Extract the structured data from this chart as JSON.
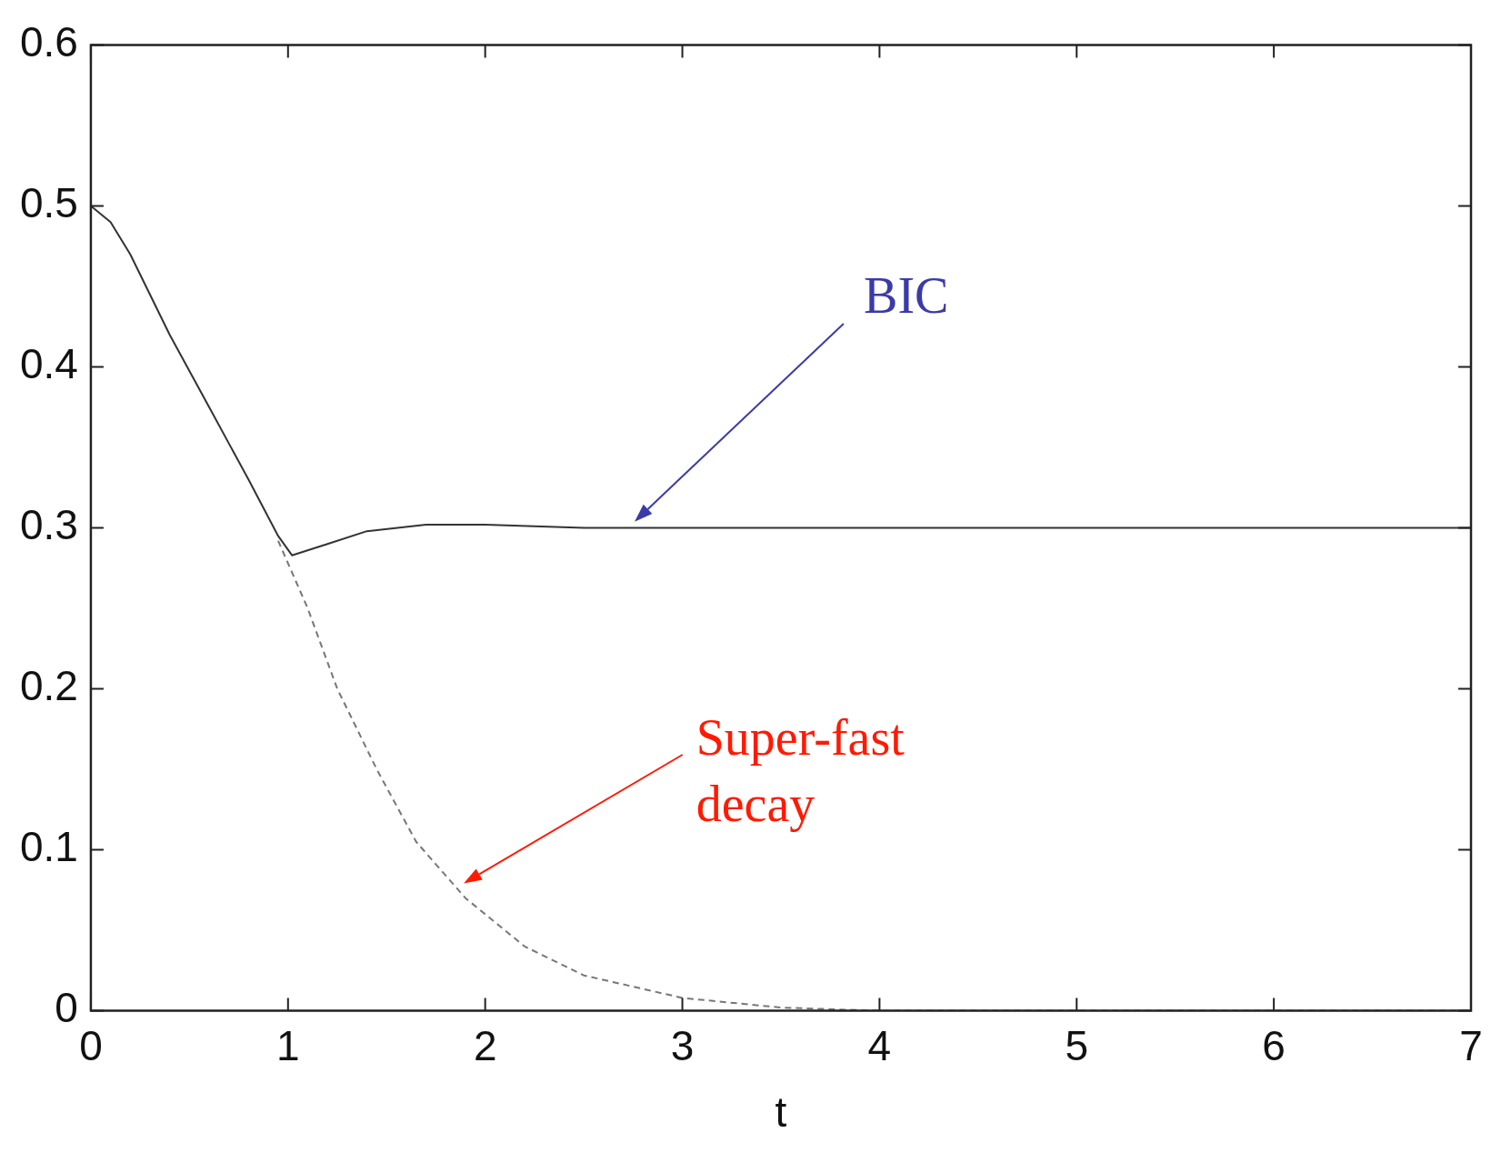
{
  "chart_data": {
    "type": "line",
    "xlabel": "t",
    "xlim": [
      0,
      7
    ],
    "ylim": [
      0,
      0.6
    ],
    "xticks": [
      0,
      1,
      2,
      3,
      4,
      5,
      6,
      7
    ],
    "yticks": [
      0,
      0.1,
      0.2,
      0.3,
      0.4,
      0.5,
      0.6
    ],
    "grid": false,
    "legend": false,
    "marker": "none",
    "series": [
      {
        "color": "#333333",
        "line_style": "solid",
        "x": [
          0,
          0.1,
          0.2,
          0.4,
          0.6,
          0.8,
          0.95,
          1.02,
          1.2,
          1.4,
          1.7,
          2,
          2.5,
          3,
          4,
          5,
          6,
          7
        ],
        "values": [
          0.5,
          0.49,
          0.47,
          0.42,
          0.375,
          0.33,
          0.295,
          0.283,
          0.29,
          0.298,
          0.302,
          0.302,
          0.3,
          0.3,
          0.3,
          0.3,
          0.3,
          0.3
        ]
      },
      {
        "color": "#777777",
        "line_style": "dashed",
        "x": [
          0.95,
          1.1,
          1.25,
          1.45,
          1.65,
          1.9,
          2.2,
          2.5,
          3,
          3.5,
          4,
          5,
          6,
          7
        ],
        "values": [
          0.292,
          0.25,
          0.2,
          0.15,
          0.105,
          0.07,
          0.04,
          0.022,
          0.008,
          0.002,
          0,
          0,
          0,
          0
        ]
      }
    ],
    "annotations": [
      "BIC",
      "Super-fast\ndecay"
    ]
  }
}
